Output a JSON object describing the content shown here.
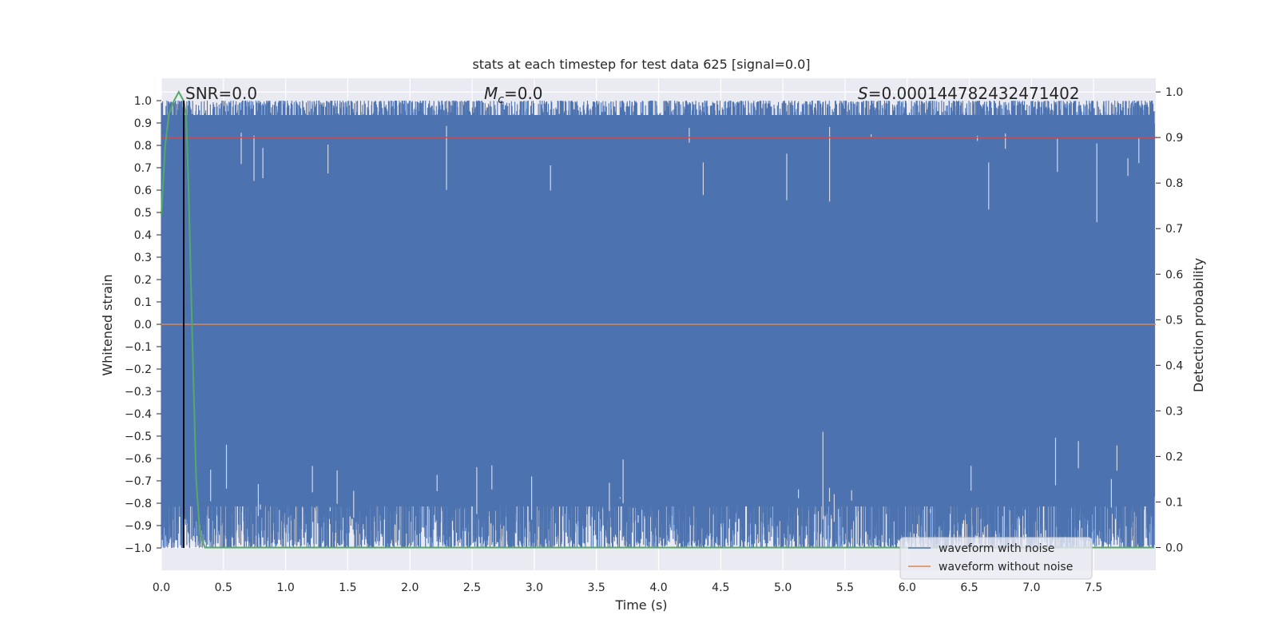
{
  "chart_data": {
    "type": "line",
    "title": "stats at each timestep for test data 625 [signal=0.0]",
    "xlabel": "Time (s)",
    "ylabel": "Whitened strain",
    "ylabel_right": "Detection probability",
    "xlim": [
      0.0,
      8.0
    ],
    "ylim": [
      -1.1,
      1.1
    ],
    "ylim_right": [
      -0.05,
      1.03
    ],
    "xticks": [
      "0.0",
      "0.5",
      "1.0",
      "1.5",
      "2.0",
      "2.5",
      "3.0",
      "3.5",
      "4.0",
      "4.5",
      "5.0",
      "5.5",
      "6.0",
      "6.5",
      "7.0",
      "7.5"
    ],
    "yticks_left": [
      "1.0",
      "0.9",
      "0.8",
      "0.7",
      "0.6",
      "0.5",
      "0.4",
      "0.3",
      "0.2",
      "0.1",
      "0.0",
      "−0.1",
      "−0.2",
      "−0.3",
      "−0.4",
      "−0.5",
      "−0.6",
      "−0.7",
      "−0.8",
      "−0.9",
      "−1.0"
    ],
    "yticks_right": [
      "1.0",
      "0.9",
      "0.8",
      "0.7",
      "0.6",
      "0.5",
      "0.4",
      "0.3",
      "0.2",
      "0.1",
      "0.0"
    ],
    "grid": true,
    "legend_position": "lower-right",
    "annotations": {
      "snr": "SNR=0.0",
      "mc_symbol": "M",
      "mc_sub": "c",
      "mc_value": "=0.0",
      "s_symbol": "S",
      "s_value": "=0.000144782432471402"
    },
    "series": [
      {
        "name": "waveform with noise",
        "color": "#4c72b0",
        "description_values": "noise between -1.0 and 1.0 over 0-8 s"
      },
      {
        "name": "waveform without noise",
        "color": "#dd8452",
        "values_x": [
          0.0,
          8.0
        ],
        "values_y": [
          0.0,
          0.0
        ]
      }
    ],
    "detection_probability": {
      "color": "#55a868",
      "x": [
        0.0,
        0.03,
        0.06,
        0.1,
        0.14,
        0.18,
        0.2,
        0.22,
        0.25,
        0.28,
        0.31,
        0.35,
        0.4,
        1.0,
        2.0,
        3.0,
        4.0,
        5.0,
        6.0,
        7.0,
        7.99
      ],
      "y": [
        0.73,
        0.88,
        0.95,
        0.98,
        1.0,
        0.98,
        0.95,
        0.78,
        0.45,
        0.15,
        0.03,
        0.0,
        0.0,
        0.0,
        0.0,
        0.0,
        0.0,
        0.0,
        0.0,
        0.0,
        0.0
      ]
    },
    "threshold_right": {
      "value": 0.9,
      "color": "#c44e52"
    },
    "vertical_marker": {
      "x": 0.18,
      "color": "#000000"
    }
  }
}
